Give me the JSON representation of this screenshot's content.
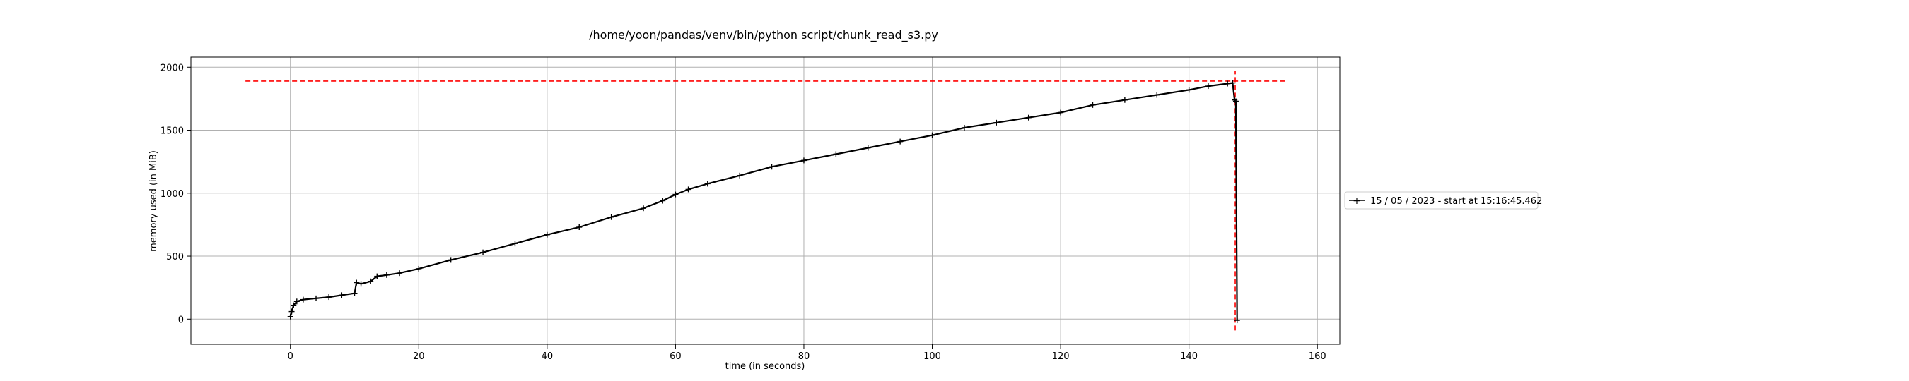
{
  "chart_data": {
    "type": "line",
    "title": "/home/yoon/pandas/venv/bin/python script/chunk_read_s3.py",
    "xlabel": "time (in seconds)",
    "ylabel": "memory used (in MiB)",
    "xlim": [
      -15.5,
      163.5
    ],
    "ylim": [
      -200,
      2080
    ],
    "xticks": [
      0,
      20,
      40,
      60,
      80,
      100,
      120,
      140,
      160
    ],
    "yticks": [
      0,
      500,
      1000,
      1500,
      2000
    ],
    "grid": true,
    "legend_position": "right-outside",
    "series": [
      {
        "name": "15 / 05 / 2023 - start at 15:16:45.462",
        "color": "#000000",
        "marker": "+",
        "x": [
          0,
          0.2,
          0.5,
          1,
          2,
          4,
          6,
          8,
          10,
          10.3,
          11,
          12.5,
          13.5,
          15,
          17,
          20,
          25,
          30,
          35,
          40,
          45,
          50,
          55,
          58,
          60,
          62,
          65,
          70,
          75,
          80,
          85,
          90,
          95,
          100,
          105,
          110,
          115,
          120,
          125,
          130,
          135,
          140,
          143,
          146,
          146.8,
          147.1,
          147.3,
          147.5
        ],
        "y": [
          20,
          60,
          110,
          140,
          155,
          165,
          175,
          190,
          205,
          290,
          280,
          300,
          340,
          350,
          365,
          400,
          470,
          530,
          600,
          670,
          730,
          810,
          880,
          940,
          990,
          1030,
          1075,
          1140,
          1210,
          1260,
          1310,
          1360,
          1410,
          1460,
          1520,
          1560,
          1600,
          1640,
          1700,
          1740,
          1780,
          1820,
          1850,
          1870,
          1875,
          1740,
          1730,
          -10
        ]
      }
    ],
    "reference_lines": [
      {
        "orientation": "horizontal",
        "value": 1890,
        "from": -7,
        "to": 155,
        "color": "#ff0000",
        "style": "dashed"
      },
      {
        "orientation": "vertical",
        "value": 147.2,
        "from": -90,
        "to": 1970,
        "color": "#ff0000",
        "style": "dashed"
      }
    ]
  }
}
